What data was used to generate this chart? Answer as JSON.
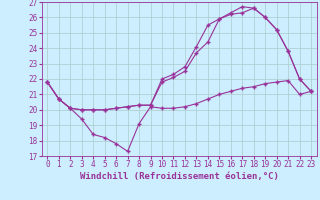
{
  "bg_color": "#cceeff",
  "grid_color": "#aacccc",
  "line_color": "#993399",
  "xlim": [
    -0.5,
    23.5
  ],
  "ylim": [
    17,
    27
  ],
  "xticks": [
    0,
    1,
    2,
    3,
    4,
    5,
    6,
    7,
    8,
    9,
    10,
    11,
    12,
    13,
    14,
    15,
    16,
    17,
    18,
    19,
    20,
    21,
    22,
    23
  ],
  "yticks": [
    17,
    18,
    19,
    20,
    21,
    22,
    23,
    24,
    25,
    26,
    27
  ],
  "line1_x": [
    0,
    1,
    2,
    3,
    4,
    5,
    6,
    7,
    8,
    9,
    10,
    11,
    12,
    13,
    14,
    15,
    16,
    17,
    18,
    19,
    20,
    21,
    22,
    23
  ],
  "line1_y": [
    21.8,
    20.7,
    20.1,
    19.4,
    18.4,
    18.2,
    17.8,
    17.3,
    19.1,
    20.2,
    20.1,
    20.1,
    20.2,
    20.4,
    20.7,
    21.0,
    21.2,
    21.4,
    21.5,
    21.7,
    21.8,
    21.9,
    21.0,
    21.2
  ],
  "line2_x": [
    0,
    1,
    2,
    3,
    4,
    5,
    6,
    7,
    8,
    9,
    10,
    11,
    12,
    13,
    14,
    15,
    16,
    17,
    18,
    19,
    20,
    21,
    22,
    23
  ],
  "line2_y": [
    21.8,
    20.7,
    20.1,
    20.0,
    20.0,
    20.0,
    20.1,
    20.2,
    20.3,
    20.3,
    21.8,
    22.1,
    22.5,
    23.7,
    24.4,
    25.9,
    26.2,
    26.3,
    26.6,
    26.0,
    25.2,
    23.8,
    22.0,
    21.2
  ],
  "line3_x": [
    0,
    1,
    2,
    3,
    4,
    5,
    6,
    7,
    8,
    9,
    10,
    11,
    12,
    13,
    14,
    15,
    16,
    17,
    18,
    19,
    20,
    21,
    22,
    23
  ],
  "line3_y": [
    21.8,
    20.7,
    20.1,
    20.0,
    20.0,
    20.0,
    20.1,
    20.2,
    20.3,
    20.3,
    22.0,
    22.3,
    22.8,
    24.1,
    25.5,
    25.9,
    26.3,
    26.7,
    26.6,
    26.0,
    25.2,
    23.8,
    22.0,
    21.2
  ],
  "xlabel": "Windchill (Refroidissement éolien,°C)",
  "marker": "+",
  "markersize": 3,
  "linewidth": 0.8,
  "tick_fontsize": 5.5,
  "xlabel_fontsize": 6.5
}
